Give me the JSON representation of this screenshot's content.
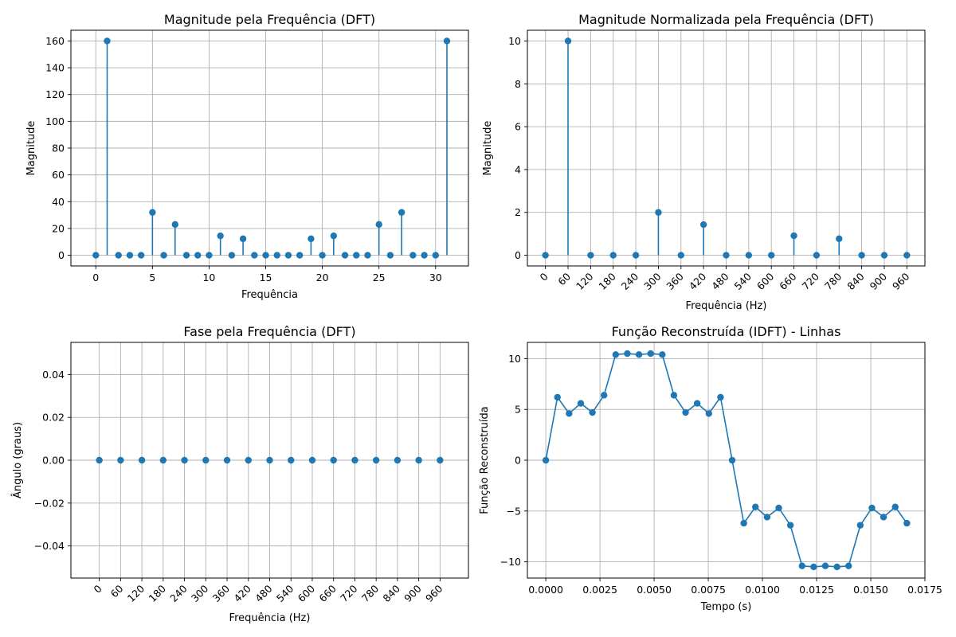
{
  "colors": {
    "series": "#1f77b4",
    "grid": "#b0b0b0"
  },
  "chart_data": [
    {
      "type": "stem",
      "title": "Magnitude pela Frequência (DFT)",
      "xlabel": "Frequência",
      "ylabel": "Magnitude",
      "xlim": [
        -2.2,
        32.9
      ],
      "ylim": [
        -8,
        168
      ],
      "grid": true,
      "x_ticks": [
        0,
        5,
        10,
        15,
        20,
        25,
        30
      ],
      "x_tick_labels": [
        "0",
        "5",
        "10",
        "15",
        "20",
        "25",
        "30"
      ],
      "y_ticks": [
        0,
        20,
        40,
        60,
        80,
        100,
        120,
        140,
        160
      ],
      "y_tick_labels": [
        "0",
        "20",
        "40",
        "60",
        "80",
        "100",
        "120",
        "140",
        "160"
      ],
      "x": [
        0,
        1,
        2,
        3,
        4,
        5,
        6,
        7,
        8,
        9,
        10,
        11,
        12,
        13,
        14,
        15,
        16,
        17,
        18,
        19,
        20,
        21,
        22,
        23,
        24,
        25,
        26,
        27,
        28,
        29,
        30,
        31
      ],
      "values": [
        0,
        160,
        0,
        0,
        0,
        32,
        0,
        23,
        0,
        0,
        0,
        14.5,
        0,
        12.3,
        0,
        0,
        0,
        0,
        0,
        12.3,
        0,
        14.5,
        0,
        0,
        0,
        23,
        0,
        32,
        0,
        0,
        0,
        160
      ]
    },
    {
      "type": "stem",
      "title": "Magnitude Normalizada pela Frequência (DFT)",
      "xlabel": "Frequência (Hz)",
      "ylabel": "Magnitude",
      "xlim": [
        -48,
        1008
      ],
      "ylim": [
        -0.5,
        10.5
      ],
      "grid": true,
      "x_tick_rotation": -45,
      "x_ticks": [
        0,
        60,
        120,
        180,
        240,
        300,
        360,
        420,
        480,
        540,
        600,
        660,
        720,
        780,
        840,
        900,
        960
      ],
      "x_tick_labels": [
        "0",
        "60",
        "120",
        "180",
        "240",
        "300",
        "360",
        "420",
        "480",
        "540",
        "600",
        "660",
        "720",
        "780",
        "840",
        "900",
        "960"
      ],
      "y_ticks": [
        0,
        2,
        4,
        6,
        8,
        10
      ],
      "y_tick_labels": [
        "0",
        "2",
        "4",
        "6",
        "8",
        "10"
      ],
      "x": [
        0,
        60,
        120,
        180,
        240,
        300,
        360,
        420,
        480,
        540,
        600,
        660,
        720,
        780,
        840,
        900,
        960
      ],
      "values": [
        0,
        10,
        0,
        0,
        0,
        2,
        0,
        1.43,
        0,
        0,
        0,
        0.91,
        0,
        0.77,
        0,
        0,
        0
      ]
    },
    {
      "type": "scatter",
      "title": "Fase pela Frequência (DFT)",
      "xlabel": "Frequência (Hz)",
      "ylabel": "Ângulo (graus)",
      "xlim": [
        -80,
        1040
      ],
      "ylim": [
        -0.055,
        0.055
      ],
      "grid": true,
      "x_tick_rotation": -45,
      "x_ticks": [
        0,
        60,
        120,
        180,
        240,
        300,
        360,
        420,
        480,
        540,
        600,
        660,
        720,
        780,
        840,
        900,
        960
      ],
      "x_tick_labels": [
        "0",
        "60",
        "120",
        "180",
        "240",
        "300",
        "360",
        "420",
        "480",
        "540",
        "600",
        "660",
        "720",
        "780",
        "840",
        "900",
        "960"
      ],
      "y_ticks": [
        -0.04,
        -0.02,
        0,
        0.02,
        0.04
      ],
      "y_tick_labels": [
        "−0.04",
        "−0.02",
        "0.00",
        "0.02",
        "0.04"
      ],
      "x": [
        0,
        60,
        120,
        180,
        240,
        300,
        360,
        420,
        480,
        540,
        600,
        660,
        720,
        780,
        840,
        900,
        960
      ],
      "values": [
        0,
        0,
        0,
        0,
        0,
        0,
        0,
        0,
        0,
        0,
        0,
        0,
        0,
        0,
        0,
        0,
        0
      ]
    },
    {
      "type": "line",
      "title": "Função Reconstruída (IDFT) - Linhas",
      "xlabel": "Tempo (s)",
      "ylabel": "Função Reconstruída",
      "xlim": [
        -0.00085,
        0.0175
      ],
      "ylim": [
        -11.6,
        11.6
      ],
      "grid": true,
      "markers": true,
      "x_ticks": [
        0,
        0.0025,
        0.005,
        0.0075,
        0.01,
        0.0125,
        0.015,
        0.0175
      ],
      "x_tick_labels": [
        "0.0000",
        "0.0025",
        "0.0050",
        "0.0075",
        "0.0100",
        "0.0125",
        "0.0150",
        "0.0175"
      ],
      "y_ticks": [
        -10,
        -5,
        0,
        5,
        10
      ],
      "y_tick_labels": [
        "−10",
        "−5",
        "0",
        "5",
        "10"
      ],
      "x": [
        0,
        0.000538,
        0.001075,
        0.001613,
        0.00215,
        0.002688,
        0.003226,
        0.003763,
        0.004301,
        0.004839,
        0.005376,
        0.005914,
        0.006452,
        0.006989,
        0.007527,
        0.008065,
        0.008602,
        0.00914,
        0.009677,
        0.010215,
        0.010753,
        0.01129,
        0.011828,
        0.012366,
        0.012903,
        0.013441,
        0.013978,
        0.014516,
        0.015054,
        0.015591,
        0.016129,
        0.016667
      ],
      "values": [
        0,
        6.2,
        4.6,
        5.6,
        4.7,
        6.4,
        10.4,
        10.5,
        10.4,
        10.5,
        10.4,
        6.4,
        4.7,
        5.6,
        4.6,
        6.2,
        0,
        -6.2,
        -4.6,
        -5.6,
        -4.7,
        -6.4,
        -10.4,
        -10.5,
        -10.4,
        -10.5,
        -10.4,
        -6.4,
        -4.7,
        -5.6,
        -4.6,
        -6.2
      ]
    }
  ]
}
